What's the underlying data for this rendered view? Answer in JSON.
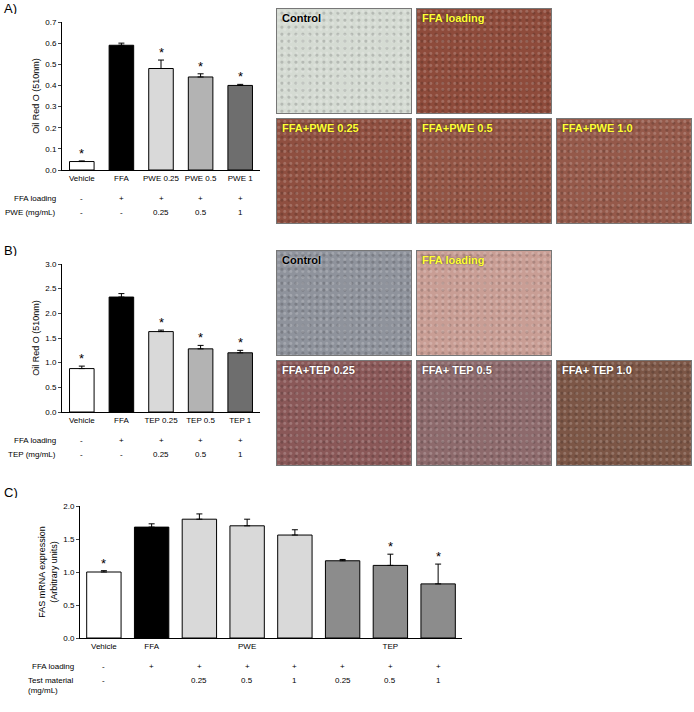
{
  "chart_data": [
    {
      "panel": "A)",
      "type": "bar",
      "categories": [
        "Vehicle",
        "FFA",
        "PWE 0.25",
        "PWE 0.5",
        "PWE 1"
      ],
      "values": [
        0.04,
        0.59,
        0.48,
        0.44,
        0.4
      ],
      "errors": [
        0.003,
        0.01,
        0.04,
        0.015,
        0.005
      ],
      "colors": [
        "#ffffff",
        "#000000",
        "#d9d9d9",
        "#b3b3b3",
        "#6e6e6e"
      ],
      "y_title": "Oil Red O (510nm)",
      "ylim": [
        0,
        0.7
      ],
      "yticks": [
        {
          "value": 0,
          "label": "0.0"
        },
        0.1,
        0.2,
        0.3,
        0.4,
        0.5,
        0.6,
        0.7
      ],
      "annotations": [
        {
          "index": 0,
          "text": "*"
        },
        {
          "index": 2,
          "text": "*"
        },
        {
          "index": 3,
          "text": "*"
        },
        {
          "index": 4,
          "text": "*"
        }
      ],
      "table_rows": [
        {
          "label": "FFA loading",
          "cells": [
            "-",
            "+",
            "+",
            "+",
            "+"
          ]
        },
        {
          "label": "PWE (mg/mL)",
          "cells": [
            "-",
            "-",
            "0.25",
            "0.5",
            "1"
          ]
        }
      ]
    },
    {
      "panel": "B)",
      "type": "bar",
      "categories": [
        "Vehicle",
        "FFA",
        "TEP 0.25",
        "TEP 0.5",
        "TEP 1"
      ],
      "values": [
        0.88,
        2.33,
        1.63,
        1.28,
        1.2
      ],
      "errors": [
        0.05,
        0.07,
        0.03,
        0.07,
        0.05
      ],
      "colors": [
        "#ffffff",
        "#000000",
        "#d9d9d9",
        "#b3b3b3",
        "#6e6e6e"
      ],
      "y_title": "Oil Red O (510nm)",
      "ylim": [
        0,
        3.0
      ],
      "yticks": [
        {
          "value": 0,
          "label": "0.0"
        },
        0.5,
        {
          "value": 1,
          "label": "1.0"
        },
        1.5,
        {
          "value": 2,
          "label": "2.0"
        },
        2.5,
        {
          "value": 3,
          "label": "3.0"
        }
      ],
      "annotations": [
        {
          "index": 0,
          "text": "*"
        },
        {
          "index": 2,
          "text": "*"
        },
        {
          "index": 3,
          "text": "*"
        },
        {
          "index": 4,
          "text": "*"
        }
      ],
      "table_rows": [
        {
          "label": "FFA loading",
          "cells": [
            "-",
            "+",
            "+",
            "+",
            "+"
          ]
        },
        {
          "label": "TEP (mg/mL)",
          "cells": [
            "-",
            "-",
            "0.25",
            "0.5",
            "1"
          ]
        }
      ]
    },
    {
      "panel": "C)",
      "type": "bar",
      "categories": [
        "Vehicle",
        "FFA",
        null,
        "PWE",
        null,
        null,
        "TEP",
        null
      ],
      "values": [
        1.0,
        1.68,
        1.8,
        1.7,
        1.56,
        1.17,
        1.1,
        0.82
      ],
      "errors": [
        0.02,
        0.05,
        0.08,
        0.1,
        0.08,
        0.02,
        0.17,
        0.3
      ],
      "colors": [
        "#ffffff",
        "#000000",
        "#d9d9d9",
        "#d9d9d9",
        "#d9d9d9",
        "#8c8c8c",
        "#8c8c8c",
        "#8c8c8c"
      ],
      "y_title": "FAS mRNA expression (Arbitrary units)",
      "ylim": [
        0,
        2.0
      ],
      "yticks": [
        {
          "value": 0,
          "label": "0.0"
        },
        0.5,
        {
          "value": 1,
          "label": "1.0"
        },
        1.5,
        {
          "value": 2,
          "label": "2.0"
        }
      ],
      "annotations": [
        {
          "index": 0,
          "text": "*"
        },
        {
          "index": 6,
          "text": "*"
        },
        {
          "index": 7,
          "text": "*"
        }
      ],
      "table_rows": [
        {
          "label": "FFA loading",
          "cells": [
            "-",
            "+",
            "+",
            "+",
            "+",
            "+",
            "+",
            "+"
          ]
        },
        {
          "label": "Test material (mg/mL)",
          "cells": [
            "-",
            null,
            "0.25",
            "0.5",
            "1",
            "0.25",
            "0.5",
            "1"
          ]
        }
      ]
    }
  ],
  "micrographs": [
    {
      "panel": "A",
      "tiles": [
        {
          "label": "Control",
          "color": "#d5dbd3",
          "label_color": "#000000"
        },
        {
          "label": "FFA loading",
          "color": "#8e4b3b",
          "label_color": "#ffff33"
        },
        {
          "label": "FFA+PWE 0.25",
          "color": "#8f4f40",
          "label_color": "#ffff33"
        },
        {
          "label": "FFA+PWE 0.5",
          "color": "#925444",
          "label_color": "#ffff33"
        },
        {
          "label": "FFA+PWE 1.0",
          "color": "#95594a",
          "label_color": "#ffff33"
        }
      ]
    },
    {
      "panel": "B",
      "tiles": [
        {
          "label": "Control",
          "color": "#8f939c",
          "label_color": "#000000"
        },
        {
          "label": "FFA loading",
          "color": "#c99e95",
          "label_color": "#ffff33"
        },
        {
          "label": "FFA+TEP 0.25",
          "color": "#8a5858",
          "label_color": "#ffffff"
        },
        {
          "label": "FFA+ TEP 0.5",
          "color": "#8d6a6c",
          "label_color": "#ffffff"
        },
        {
          "label": "FFA+ TEP 1.0",
          "color": "#7c5646",
          "label_color": "#ffffff"
        }
      ]
    }
  ]
}
